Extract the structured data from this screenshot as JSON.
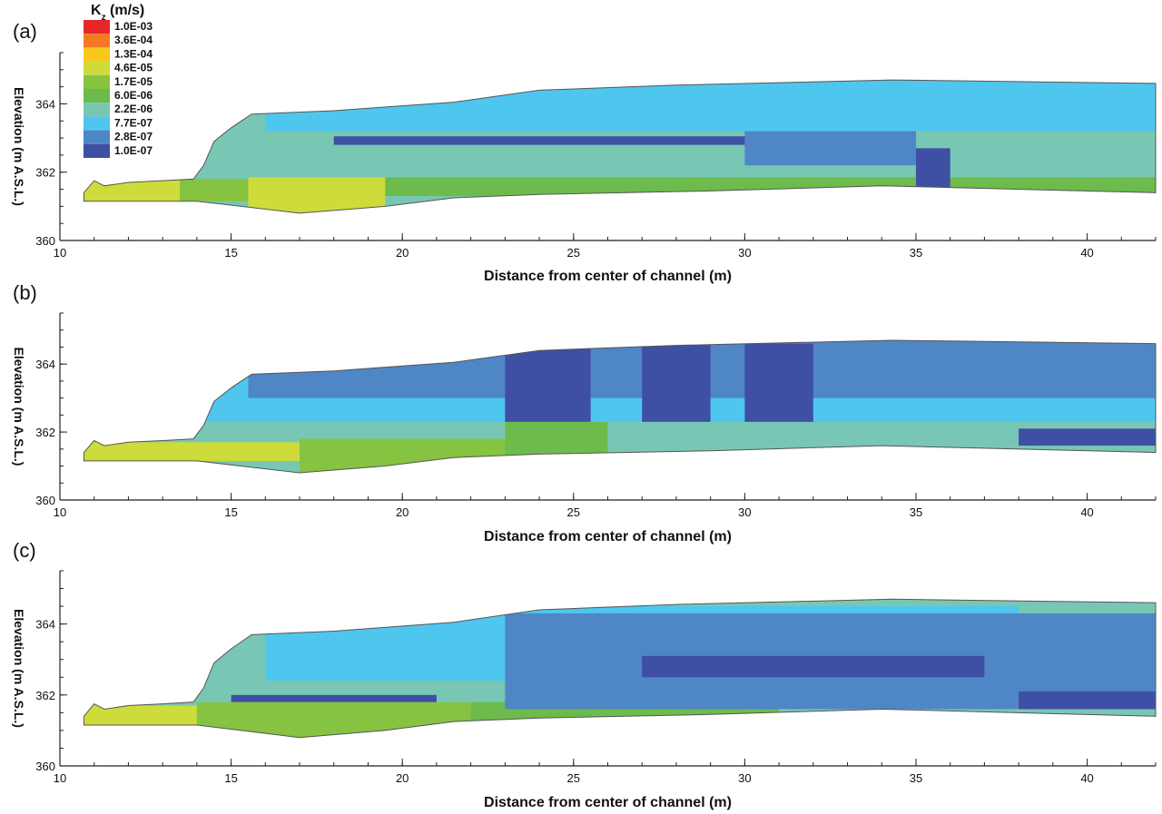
{
  "legend": {
    "title_main": "K",
    "title_sub": "z",
    "title_unit": " (m/s)",
    "levels": [
      {
        "label": "1.0E-03",
        "color": "#e8262a"
      },
      {
        "label": "3.6E-04",
        "color": "#f47a22"
      },
      {
        "label": "1.3E-04",
        "color": "#f9c81a"
      },
      {
        "label": "4.6E-05",
        "color": "#cddc3a"
      },
      {
        "label": "1.7E-05",
        "color": "#86c340"
      },
      {
        "label": "6.0E-06",
        "color": "#6cbb4c"
      },
      {
        "label": "2.2E-06",
        "color": "#78c7b4"
      },
      {
        "label": "7.7E-07",
        "color": "#4fc6ee"
      },
      {
        "label": "2.8E-07",
        "color": "#4f86c6"
      },
      {
        "label": "1.0E-07",
        "color": "#3f4fa4"
      }
    ]
  },
  "chart_data": [
    {
      "type": "heatmap",
      "panel_label": "(a)",
      "xlabel": "Distance from center of channel (m)",
      "ylabel": "Elevation (m A.S.L.)",
      "xlim": [
        10,
        42
      ],
      "ylim": [
        360,
        365.5
      ],
      "xticks": [
        10,
        15,
        20,
        25,
        30,
        35,
        40
      ],
      "yticks": [
        360,
        362,
        364
      ],
      "bands": [
        {
          "color": "#cddc3a",
          "y": [
            361.15,
            361.8
          ],
          "x": [
            10.7,
            13.5
          ]
        },
        {
          "color": "#86c340",
          "y": [
            361.15,
            361.8
          ],
          "x": [
            13.5,
            15.5
          ]
        },
        {
          "color": "#cddc3a",
          "y": [
            360.8,
            361.85
          ],
          "x": [
            15.5,
            19.5
          ]
        },
        {
          "color": "#6cbb4c",
          "y": [
            361.3,
            361.85
          ],
          "x": [
            19.5,
            22
          ]
        },
        {
          "color": "#6cbb4c",
          "y": [
            361.2,
            362.3
          ],
          "x": [
            22,
            38
          ]
        },
        {
          "color": "#6cbb4c",
          "y": [
            361.4,
            362.3
          ],
          "x": [
            38,
            42
          ]
        },
        {
          "color": "#78c7b4",
          "y": [
            361.85,
            364.7
          ],
          "x": [
            13.5,
            42
          ]
        },
        {
          "color": "#4fc6ee",
          "y": [
            363.2,
            364.7
          ],
          "x": [
            16,
            42
          ]
        },
        {
          "color": "#4f86c6",
          "y": [
            362.2,
            363.2
          ],
          "x": [
            30,
            35
          ]
        },
        {
          "color": "#3f4fa4",
          "y": [
            361.5,
            362.7
          ],
          "x": [
            35,
            36
          ]
        },
        {
          "color": "#3f4fa4",
          "y": [
            362.8,
            363.05
          ],
          "x": [
            18,
            30
          ]
        }
      ]
    },
    {
      "type": "heatmap",
      "panel_label": "(b)",
      "xlabel": "Distance from center of channel (m)",
      "ylabel": "Elevation (m A.S.L.)",
      "xlim": [
        10,
        42
      ],
      "ylim": [
        360,
        365.5
      ],
      "xticks": [
        10,
        15,
        20,
        25,
        30,
        35,
        40
      ],
      "yticks": [
        360,
        362,
        364
      ],
      "bands": [
        {
          "color": "#cddc3a",
          "y": [
            361.15,
            361.7
          ],
          "x": [
            10.7,
            17
          ]
        },
        {
          "color": "#86c340",
          "y": [
            360.8,
            361.9
          ],
          "x": [
            17,
            23
          ]
        },
        {
          "color": "#6cbb4c",
          "y": [
            361.2,
            362.3
          ],
          "x": [
            23,
            26
          ]
        },
        {
          "color": "#78c7b4",
          "y": [
            361.3,
            362.3
          ],
          "x": [
            26,
            42
          ]
        },
        {
          "color": "#78c7b4",
          "y": [
            361.8,
            363.4
          ],
          "x": [
            14,
            23
          ]
        },
        {
          "color": "#4fc6ee",
          "y": [
            362.3,
            364.7
          ],
          "x": [
            14,
            42
          ]
        },
        {
          "color": "#4f86c6",
          "y": [
            363.0,
            364.7
          ],
          "x": [
            15.5,
            42
          ]
        },
        {
          "color": "#3f4fa4",
          "y": [
            362.3,
            364.6
          ],
          "x": [
            23,
            25.5
          ]
        },
        {
          "color": "#3f4fa4",
          "y": [
            362.3,
            364.6
          ],
          "x": [
            27,
            29
          ]
        },
        {
          "color": "#3f4fa4",
          "y": [
            362.3,
            364.6
          ],
          "x": [
            30,
            32
          ]
        },
        {
          "color": "#3f4fa4",
          "y": [
            361.6,
            362.1
          ],
          "x": [
            38,
            42
          ]
        }
      ]
    },
    {
      "type": "heatmap",
      "panel_label": "(c)",
      "xlabel": "Distance from center of channel (m)",
      "ylabel": "Elevation (m A.S.L.)",
      "xlim": [
        10,
        42
      ],
      "ylim": [
        360,
        365.5
      ],
      "xticks": [
        10,
        15,
        20,
        25,
        30,
        35,
        40
      ],
      "yticks": [
        360,
        362,
        364
      ],
      "bands": [
        {
          "color": "#cddc3a",
          "y": [
            361.15,
            361.7
          ],
          "x": [
            10.7,
            14
          ]
        },
        {
          "color": "#86c340",
          "y": [
            360.8,
            361.8
          ],
          "x": [
            14,
            22
          ]
        },
        {
          "color": "#6cbb4c",
          "y": [
            361.2,
            362.3
          ],
          "x": [
            22,
            31
          ]
        },
        {
          "color": "#78c7b4",
          "y": [
            361.3,
            362.3
          ],
          "x": [
            31,
            36
          ]
        },
        {
          "color": "#78c7b4",
          "y": [
            361.8,
            364.7
          ],
          "x": [
            14,
            42
          ]
        },
        {
          "color": "#4fc6ee",
          "y": [
            362.4,
            364.5
          ],
          "x": [
            16,
            38
          ]
        },
        {
          "color": "#4f86c6",
          "y": [
            361.6,
            364.3
          ],
          "x": [
            23,
            42
          ]
        },
        {
          "color": "#3f4fa4",
          "y": [
            362.5,
            363.1
          ],
          "x": [
            27,
            37
          ]
        },
        {
          "color": "#3f4fa4",
          "y": [
            361.8,
            362.0
          ],
          "x": [
            15,
            21
          ]
        },
        {
          "color": "#3f4fa4",
          "y": [
            361.6,
            362.1
          ],
          "x": [
            38,
            42
          ]
        }
      ]
    }
  ],
  "domain_outline": {
    "top": [
      [
        10.7,
        361.4
      ],
      [
        11.0,
        361.75
      ],
      [
        11.3,
        361.6
      ],
      [
        12.0,
        361.7
      ],
      [
        13.0,
        361.75
      ],
      [
        13.9,
        361.8
      ],
      [
        14.2,
        362.2
      ],
      [
        14.5,
        362.9
      ],
      [
        15.0,
        363.3
      ],
      [
        15.6,
        363.7
      ],
      [
        18.0,
        363.8
      ],
      [
        21.5,
        364.05
      ],
      [
        24.0,
        364.4
      ],
      [
        28.0,
        364.55
      ],
      [
        34.3,
        364.7
      ],
      [
        42.0,
        364.6
      ]
    ],
    "bottom": [
      [
        42.0,
        361.4
      ],
      [
        34.0,
        361.6
      ],
      [
        29.0,
        361.45
      ],
      [
        24.0,
        361.35
      ],
      [
        21.5,
        361.25
      ],
      [
        19.5,
        361.0
      ],
      [
        17.0,
        360.8
      ],
      [
        14.0,
        361.15
      ],
      [
        10.7,
        361.15
      ]
    ]
  }
}
